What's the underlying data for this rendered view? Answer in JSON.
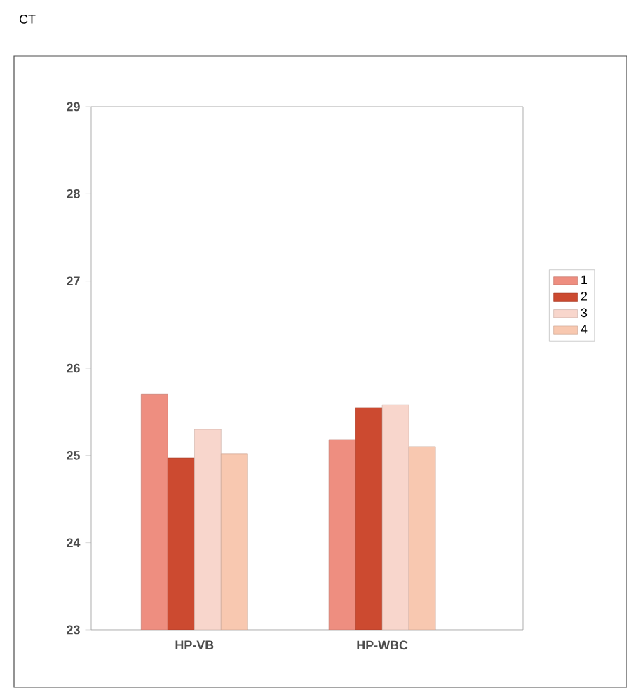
{
  "chart_data": {
    "type": "bar",
    "title": "CT",
    "categories": [
      "HP-VB",
      "HP-WBC"
    ],
    "series": [
      {
        "name": "1",
        "color": "#ee8e80",
        "values": [
          25.7,
          25.18
        ]
      },
      {
        "name": "2",
        "color": "#cc4a30",
        "values": [
          24.97,
          25.55
        ]
      },
      {
        "name": "3",
        "color": "#f8d6cc",
        "values": [
          25.3,
          25.58
        ]
      },
      {
        "name": "4",
        "color": "#f8c8b0",
        "values": [
          25.02,
          25.1
        ]
      }
    ],
    "ylim": [
      23,
      29
    ],
    "yticks": [
      23,
      24,
      25,
      26,
      27,
      28,
      29
    ],
    "legend": "right"
  }
}
